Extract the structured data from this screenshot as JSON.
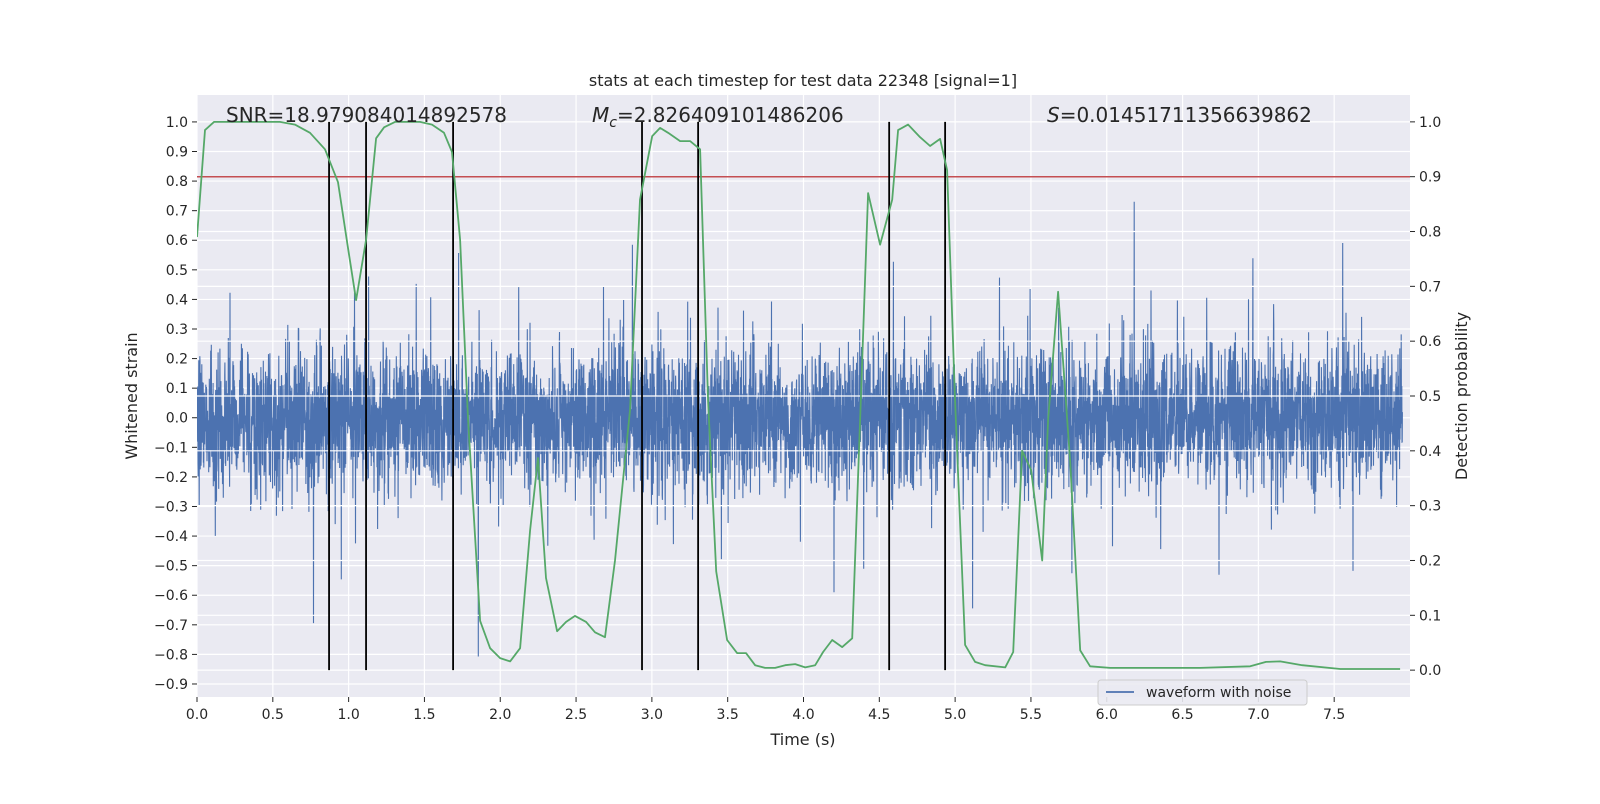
{
  "chart_data": {
    "type": "line",
    "title": "stats at each timestep for test data 22348 [signal=1]",
    "xlabel": "Time (s)",
    "ylabel": "Whitened strain",
    "ylabel_right": "Detection probability",
    "xlim": [
      0.0,
      8.0
    ],
    "ylim": [
      -0.944,
      1.091
    ],
    "ylim_right": [
      -0.049,
      1.049
    ],
    "grid": true,
    "x_ticks": [
      "0.0",
      "0.5",
      "1.0",
      "1.5",
      "2.0",
      "2.5",
      "3.0",
      "3.5",
      "4.0",
      "4.5",
      "5.0",
      "5.5",
      "6.0",
      "6.5",
      "7.0",
      "7.5"
    ],
    "x_tick_values": [
      0,
      0.5,
      1,
      1.5,
      2,
      2.5,
      3,
      3.5,
      4,
      4.5,
      5,
      5.5,
      6,
      6.5,
      7,
      7.5
    ],
    "y_ticks": [
      "1.0",
      "0.9",
      "0.8",
      "0.7",
      "0.6",
      "0.5",
      "0.4",
      "0.3",
      "0.2",
      "0.1",
      "0.0",
      "−0.1",
      "−0.2",
      "−0.3",
      "−0.4",
      "−0.5",
      "−0.6",
      "−0.7",
      "−0.8",
      "−0.9"
    ],
    "y_tick_values": [
      1,
      0.9,
      0.8,
      0.7,
      0.6,
      0.5,
      0.4,
      0.3,
      0.2,
      0.1,
      0,
      -0.1,
      -0.2,
      -0.3,
      -0.4,
      -0.5,
      -0.6,
      -0.7,
      -0.8,
      -0.9
    ],
    "y_ticks_right": [
      "1.0",
      "0.9",
      "0.8",
      "0.7",
      "0.6",
      "0.5",
      "0.4",
      "0.3",
      "0.2",
      "0.1",
      "0.0"
    ],
    "y_tick_values_right": [
      1,
      0.9,
      0.8,
      0.7,
      0.6,
      0.5,
      0.4,
      0.3,
      0.2,
      0.1,
      0
    ],
    "annotations": {
      "snr": "SNR=18.979084014892578",
      "mc_symbol": "M",
      "mc_sub": "c",
      "mc_value": "=2.826409101486206",
      "s_symbol": "S",
      "s_value": "=0.01451711356639862"
    },
    "legend": {
      "entries": [
        "waveform with noise"
      ],
      "placement": "lower-right"
    },
    "waveform": {
      "name": "waveform with noise",
      "color": "#4c72b0",
      "duration": 7.95,
      "samples": 6000,
      "noise_std": 0.115,
      "spike_rate": 0.03,
      "spike_scale": 2.6
    },
    "threshold": {
      "axis": "right",
      "value": 0.9,
      "color": "#c44e52"
    },
    "detection_markers": {
      "color": "#000000",
      "x": [
        0.871,
        1.115,
        1.689,
        2.935,
        3.305,
        4.565,
        4.934
      ],
      "y_range": [
        0.0,
        1.0
      ],
      "axis": "right"
    },
    "probability": {
      "color": "#55a868",
      "axis": "right",
      "t": [
        0.0,
        0.053,
        0.112,
        0.547,
        0.646,
        0.745,
        0.844,
        0.93,
        0.996,
        1.049,
        1.115,
        1.181,
        1.234,
        1.306,
        1.471,
        1.55,
        1.629,
        1.682,
        1.735,
        1.788,
        1.867,
        1.933,
        1.999,
        2.065,
        2.131,
        2.197,
        2.249,
        2.302,
        2.375,
        2.434,
        2.493,
        2.566,
        2.625,
        2.691,
        2.757,
        2.856,
        2.922,
        3.002,
        3.054,
        3.107,
        3.186,
        3.252,
        3.318,
        3.371,
        3.424,
        3.496,
        3.562,
        3.621,
        3.681,
        3.747,
        3.813,
        3.879,
        3.945,
        4.011,
        4.077,
        4.129,
        4.189,
        4.255,
        4.321,
        4.373,
        4.426,
        4.505,
        4.585,
        4.624,
        4.69,
        4.769,
        4.835,
        4.901,
        4.947,
        5.0,
        5.066,
        5.132,
        5.198,
        5.33,
        5.383,
        5.442,
        5.501,
        5.574,
        5.613,
        5.679,
        5.759,
        5.825,
        5.89,
        6.022,
        6.616,
        6.946,
        7.05,
        7.144,
        7.289,
        7.54,
        7.935
      ],
      "p": [
        0.79,
        0.985,
        1.0,
        1.0,
        0.995,
        0.98,
        0.95,
        0.89,
        0.77,
        0.675,
        0.785,
        0.97,
        0.99,
        1.0,
        1.0,
        0.995,
        0.98,
        0.945,
        0.785,
        0.456,
        0.09,
        0.04,
        0.022,
        0.016,
        0.04,
        0.255,
        0.387,
        0.168,
        0.071,
        0.088,
        0.099,
        0.088,
        0.069,
        0.06,
        0.2,
        0.474,
        0.858,
        0.974,
        0.989,
        0.98,
        0.965,
        0.965,
        0.95,
        0.49,
        0.18,
        0.055,
        0.031,
        0.031,
        0.009,
        0.004,
        0.004,
        0.009,
        0.011,
        0.005,
        0.009,
        0.033,
        0.055,
        0.042,
        0.058,
        0.456,
        0.87,
        0.776,
        0.858,
        0.985,
        0.995,
        0.972,
        0.956,
        0.969,
        0.912,
        0.49,
        0.046,
        0.015,
        0.009,
        0.005,
        0.033,
        0.4,
        0.365,
        0.2,
        0.456,
        0.69,
        0.38,
        0.036,
        0.007,
        0.004,
        0.004,
        0.007,
        0.015,
        0.016,
        0.009,
        0.002,
        0.002
      ]
    }
  }
}
